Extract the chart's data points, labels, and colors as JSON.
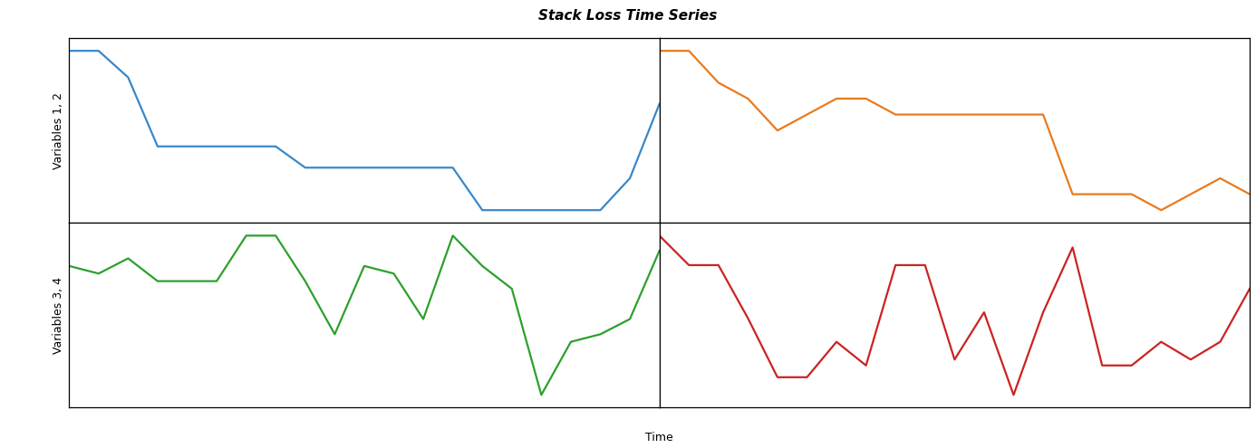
{
  "title": "Stack Loss Time Series",
  "xlabel": "Time",
  "ylabel_top": "Variables 1, 2",
  "ylabel_bot": "Variables 3, 4",
  "title_fontsize": 11,
  "label_fontsize": 9,
  "colors": {
    "blue": "#3a87c8",
    "orange": "#e87b1e",
    "green": "#2ca02c",
    "red": "#cc2222"
  },
  "var1": [
    80,
    80,
    75,
    62,
    62,
    62,
    62,
    62,
    58,
    58,
    58,
    58,
    58,
    58,
    50,
    50,
    50,
    50,
    50,
    56,
    70
  ],
  "var2": [
    27,
    27,
    25,
    24,
    22,
    23,
    24,
    24,
    23,
    23,
    23,
    23,
    23,
    23,
    18,
    18,
    18,
    17,
    18,
    19,
    18
  ],
  "var3": [
    89,
    88,
    90,
    87,
    87,
    87,
    93,
    93,
    87,
    80,
    89,
    88,
    82,
    93,
    89,
    86,
    72,
    79,
    80,
    82,
    91
  ],
  "var4": [
    42,
    37,
    37,
    28,
    18,
    18,
    24,
    20,
    37,
    37,
    21,
    29,
    15,
    29,
    40,
    20,
    20,
    24,
    21,
    24,
    33
  ],
  "linewidth": 1.6,
  "background": "#ffffff"
}
